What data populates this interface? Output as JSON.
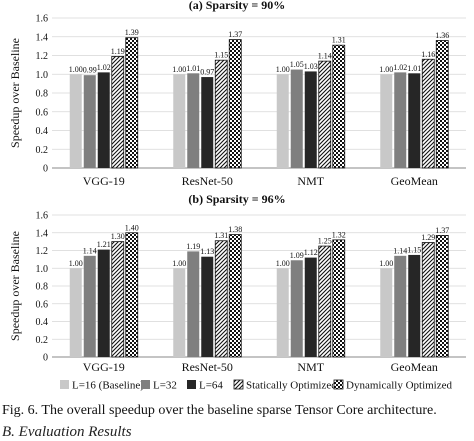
{
  "chart_data": [
    {
      "type": "bar",
      "title": "(a) Sparsity = 90%",
      "ylabel": "Speedup over Baseline",
      "xlabel": "",
      "ylim": [
        0,
        1.6
      ],
      "yticks": [
        "0",
        "0.2",
        "0.4",
        "0.6",
        "0.8",
        "1.0",
        "1.2",
        "1.4",
        "1.6"
      ],
      "grid": true,
      "categories": [
        "VGG-19",
        "ResNet-50",
        "NMT",
        "GeoMean"
      ],
      "series": [
        {
          "name": "L=16 (Baseline)",
          "values": [
            1.0,
            1.0,
            1.0,
            1.0
          ],
          "labels": [
            "1.00",
            "1.00",
            "1.00",
            "1.00"
          ]
        },
        {
          "name": "L=32",
          "values": [
            0.99,
            1.01,
            1.05,
            1.02
          ],
          "labels": [
            "0.99",
            "1.01",
            "1.05",
            "1.02"
          ]
        },
        {
          "name": "L=64",
          "values": [
            1.02,
            0.97,
            1.03,
            1.01
          ],
          "labels": [
            "1.02",
            "0.97",
            "1.03",
            "1.01"
          ]
        },
        {
          "name": "Statically Optimized",
          "values": [
            1.19,
            1.15,
            1.14,
            1.16
          ],
          "labels": [
            "1.19",
            "1.15",
            "1.14",
            "1.16"
          ]
        },
        {
          "name": "Dynamically Optimized",
          "values": [
            1.39,
            1.37,
            1.31,
            1.36
          ],
          "labels": [
            "1.39",
            "1.37",
            "1.31",
            "1.36"
          ]
        }
      ]
    },
    {
      "type": "bar",
      "title": "(b) Sparsity = 96%",
      "ylabel": "Speedup over Baseline",
      "xlabel": "",
      "ylim": [
        0,
        1.6
      ],
      "yticks": [
        "0",
        "0.2",
        "0.4",
        "0.6",
        "0.8",
        "1.0",
        "1.2",
        "1.4",
        "1.6"
      ],
      "grid": true,
      "categories": [
        "VGG-19",
        "ResNet-50",
        "NMT",
        "GeoMean"
      ],
      "series": [
        {
          "name": "L=16 (Baseline)",
          "values": [
            1.0,
            1.0,
            1.0,
            1.0
          ],
          "labels": [
            "1.00",
            "1.00",
            "1.00",
            "1.00"
          ]
        },
        {
          "name": "L=32",
          "values": [
            1.14,
            1.19,
            1.09,
            1.14
          ],
          "labels": [
            "1.14",
            "1.19",
            "1.09",
            "1.14"
          ]
        },
        {
          "name": "L=64",
          "values": [
            1.21,
            1.13,
            1.12,
            1.15
          ],
          "labels": [
            "1.21",
            "1.13",
            "1.12",
            "1.15"
          ]
        },
        {
          "name": "Statically Optimized",
          "values": [
            1.3,
            1.31,
            1.25,
            1.29
          ],
          "labels": [
            "1.30",
            "1.31",
            "1.25",
            "1.29"
          ]
        },
        {
          "name": "Dynamically Optimized",
          "values": [
            1.4,
            1.38,
            1.32,
            1.37
          ],
          "labels": [
            "1.40",
            "1.38",
            "1.32",
            "1.37"
          ]
        }
      ]
    }
  ],
  "legend": {
    "placement": "bottom",
    "entries": [
      "L=16 (Baseline)",
      "L=32",
      "L=64",
      "Statically Optimized",
      "Dynamically Optimized"
    ]
  },
  "series_style": [
    {
      "fill": "#c8c8c8",
      "pattern": "solid"
    },
    {
      "fill": "#7f7f7f",
      "pattern": "solid"
    },
    {
      "fill": "#262626",
      "pattern": "solid"
    },
    {
      "fill": "#ffffff",
      "pattern": "diagonal-hatch"
    },
    {
      "fill": "#ffffff",
      "pattern": "checker"
    }
  ],
  "caption": "Fig. 6.  The overall speedup over the baseline sparse Tensor Core architecture.",
  "next_section": "B.  Evaluation Results"
}
